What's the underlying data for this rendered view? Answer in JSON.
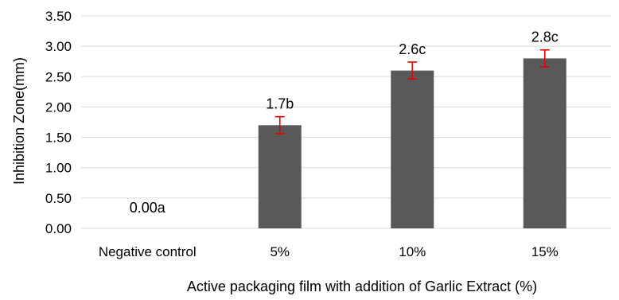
{
  "chart_data": {
    "type": "bar",
    "categories": [
      "Negative control",
      "5%",
      "10%",
      "15%"
    ],
    "values": [
      0.0,
      1.7,
      2.6,
      2.8
    ],
    "errors": [
      0.0,
      0.14,
      0.14,
      0.14
    ],
    "data_labels": [
      "0.00a",
      "1.7b",
      "2.6c",
      "2.8c"
    ],
    "title": "",
    "xlabel": "Active packaging film with addition of Garlic Extract (%)",
    "ylabel": "Inhibition Zone(mm)",
    "ylim": [
      0,
      3.5
    ],
    "yticks": [
      "0.00",
      "0.50",
      "1.00",
      "1.50",
      "2.00",
      "2.50",
      "3.00",
      "3.50"
    ],
    "grid": true,
    "colors": {
      "bar": "#595959",
      "error_bar": "#e00000",
      "grid": "#d9d9d9"
    }
  }
}
